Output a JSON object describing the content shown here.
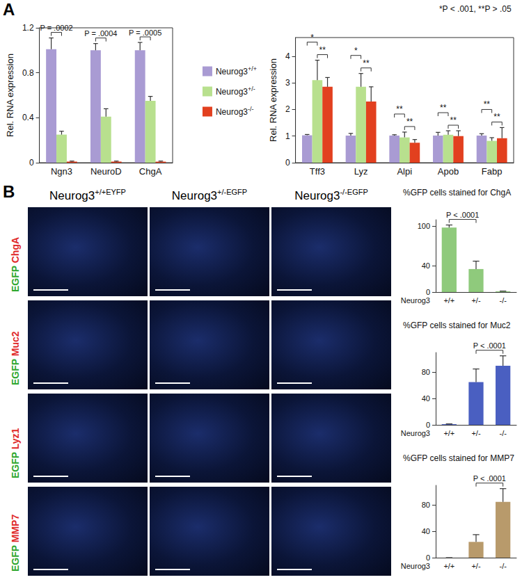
{
  "figure": {
    "panel_labels": [
      "A",
      "B"
    ],
    "images": {
      "columns": [
        "Neurog3+/+EYFP",
        "Neurog3+/-EGFP",
        "Neurog3-/-EGFP"
      ],
      "channel": "EGFP",
      "stains": [
        "ChgA",
        "Muc2",
        "Lyz1",
        "MMP7"
      ]
    }
  },
  "chart_data": [
    {
      "type": "bar",
      "ylabel": "Rel. RNA expression",
      "categories": [
        "Ngn3",
        "NeuroD",
        "ChgA"
      ],
      "series": [
        {
          "name": "Neurog3+/+",
          "color": "#a99bd3",
          "values": [
            1.01,
            1.0,
            1.0
          ],
          "errors": [
            0.1,
            0.06,
            0.07
          ]
        },
        {
          "name": "Neurog3+/-",
          "color": "#b8e08e",
          "values": [
            0.25,
            0.41,
            0.55
          ],
          "errors": [
            0.03,
            0.07,
            0.04
          ]
        },
        {
          "name": "Neurog3-/-",
          "color": "#e2401f",
          "values": [
            0.01,
            0.01,
            0.01
          ],
          "errors": [
            0.005,
            0.005,
            0.005
          ]
        }
      ],
      "ylim": [
        0,
        1.2
      ],
      "yticks": [
        0,
        0.4,
        0.8,
        1.2
      ],
      "grid": false,
      "legend": "right",
      "brackets": [
        {
          "category": "Ngn3",
          "from": "Neurog3+/+",
          "to": "Neurog3+/-",
          "label": "P = .0002"
        },
        {
          "category": "NeuroD",
          "from": "Neurog3+/+",
          "to": "Neurog3+/-",
          "label": "P = .0004"
        },
        {
          "category": "ChgA",
          "from": "Neurog3+/+",
          "to": "Neurog3+/-",
          "label": "P = .0005"
        }
      ]
    },
    {
      "type": "bar",
      "ylabel": "Rel. RNA expression",
      "note": "*P < .001, **P > .05",
      "categories": [
        "Tff3",
        "Lyz",
        "Alpi",
        "Apob",
        "Fabp"
      ],
      "series": [
        {
          "name": "Neurog3+/+",
          "color": "#a99bd3",
          "values": [
            1.03,
            1.02,
            1.02,
            1.02,
            1.02
          ],
          "errors": [
            0.03,
            0.08,
            0.03,
            0.12,
            0.07
          ]
        },
        {
          "name": "Neurog3+/-",
          "color": "#b8e08e",
          "values": [
            3.1,
            2.85,
            0.95,
            1.05,
            0.82
          ],
          "errors": [
            0.75,
            0.5,
            0.2,
            0.15,
            0.12
          ]
        },
        {
          "name": "Neurog3-/-",
          "color": "#e2401f",
          "values": [
            2.85,
            2.3,
            0.75,
            1.0,
            0.92
          ],
          "errors": [
            0.35,
            0.55,
            0.12,
            0.2,
            0.4
          ]
        }
      ],
      "ylim": [
        0,
        4.7
      ],
      "yticks": [
        0,
        1,
        2,
        3,
        4
      ],
      "grid": false,
      "brackets": [
        {
          "category": "Tff3",
          "from": "Neurog3+/-",
          "to": "Neurog3-/-",
          "label": "**"
        },
        {
          "category": "Tff3",
          "from": "Neurog3+/+",
          "to": "Neurog3+/-",
          "label": "*"
        },
        {
          "category": "Lyz",
          "from": "Neurog3+/-",
          "to": "Neurog3-/-",
          "label": "**"
        },
        {
          "category": "Lyz",
          "from": "Neurog3+/+",
          "to": "Neurog3+/-",
          "label": "*"
        },
        {
          "category": "Alpi",
          "from": "Neurog3+/-",
          "to": "Neurog3-/-",
          "label": "**"
        },
        {
          "category": "Alpi",
          "from": "Neurog3+/+",
          "to": "Neurog3+/-",
          "label": "**"
        },
        {
          "category": "Apob",
          "from": "Neurog3+/-",
          "to": "Neurog3-/-",
          "label": "**"
        },
        {
          "category": "Apob",
          "from": "Neurog3+/+",
          "to": "Neurog3+/-",
          "label": "**"
        },
        {
          "category": "Fabp",
          "from": "Neurog3+/-",
          "to": "Neurog3-/-",
          "label": "**"
        },
        {
          "category": "Fabp",
          "from": "Neurog3+/+",
          "to": "Neurog3+/-",
          "label": "**"
        }
      ]
    },
    {
      "type": "bar",
      "title": "%GFP cells stained for ChgA",
      "xlabel": "Neurog3",
      "categories": [
        "+/+",
        "+/-",
        "-/-"
      ],
      "values": [
        98,
        35,
        1
      ],
      "errors": [
        4,
        12,
        0.5
      ],
      "color": "#8fca7c",
      "ylim": [
        0,
        110
      ],
      "yticks": [
        0,
        40,
        100
      ],
      "grid": false,
      "brackets": [
        {
          "from": "+/+",
          "to": "+/-",
          "label": "P < .0001"
        }
      ]
    },
    {
      "type": "bar",
      "title": "%GFP cells stained for Muc2",
      "xlabel": "Neurog3",
      "categories": [
        "+/+",
        "+/-",
        "-/-"
      ],
      "values": [
        1,
        65,
        90
      ],
      "errors": [
        0.5,
        20,
        15
      ],
      "color": "#4a5fc1",
      "ylim": [
        0,
        110
      ],
      "yticks": [
        0,
        40,
        80
      ],
      "grid": false,
      "brackets": [
        {
          "from": "+/-",
          "to": "-/-",
          "label": "P < .0001"
        }
      ]
    },
    {
      "type": "bar",
      "title": "%GFP cells stained for MMP7",
      "xlabel": "Neurog3",
      "categories": [
        "+/+",
        "+/-",
        "-/-"
      ],
      "values": [
        0,
        24,
        85
      ],
      "errors": [
        0,
        11,
        20
      ],
      "color": "#b89a6b",
      "ylim": [
        0,
        110
      ],
      "yticks": [
        0,
        40,
        80
      ],
      "grid": false,
      "brackets": [
        {
          "from": "+/-",
          "to": "-/-",
          "label": "P < .0001"
        }
      ]
    }
  ]
}
